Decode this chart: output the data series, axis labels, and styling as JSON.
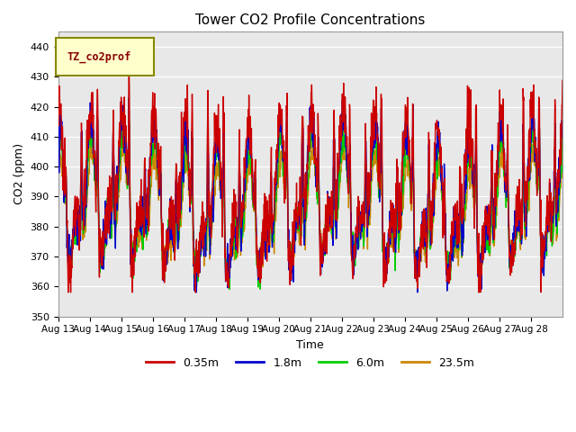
{
  "title": "Tower CO2 Profile Concentrations",
  "xlabel": "Time",
  "ylabel": "CO2 (ppm)",
  "ylim": [
    350,
    445
  ],
  "yticks": [
    350,
    360,
    370,
    380,
    390,
    400,
    410,
    420,
    430,
    440
  ],
  "legend_label": "TZ_co2prof",
  "series_labels": [
    "0.35m",
    "1.8m",
    "6.0m",
    "23.5m"
  ],
  "series_colors": [
    "#cc0000",
    "#0000cc",
    "#00cc00",
    "#cc8800"
  ],
  "line_width": 1.0,
  "fig_bg_color": "#ffffff",
  "plot_bg_color": "#e8e8e8",
  "x_tick_labels": [
    "Aug 13",
    "Aug 14",
    "Aug 15",
    "Aug 16",
    "Aug 17",
    "Aug 18",
    "Aug 19",
    "Aug 20",
    "Aug 21",
    "Aug 22",
    "Aug 23",
    "Aug 24",
    "Aug 25",
    "Aug 26",
    "Aug 27",
    "Aug 28"
  ],
  "grid_color": "#ffffff",
  "legend_box_facecolor": "#ffffcc",
  "legend_box_edgecolor": "#888800",
  "legend_text_color": "#880000",
  "n_points": 1600,
  "seed": 12345
}
